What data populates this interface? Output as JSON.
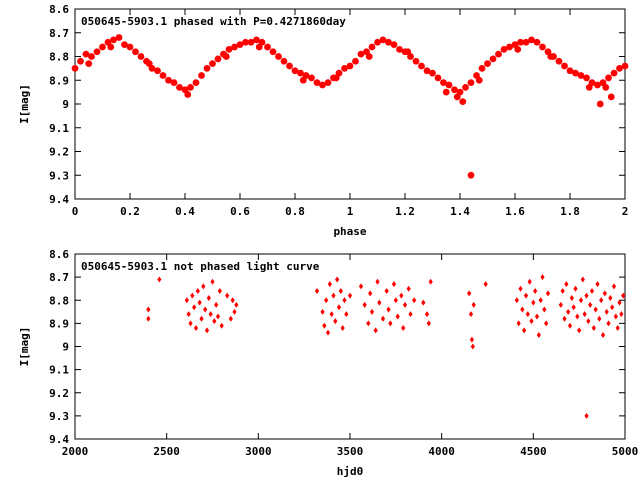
{
  "chart_data": [
    {
      "type": "scatter",
      "title": "050645-5903.1 phased with P=0.4271860day",
      "xlabel": "phase",
      "ylabel": "I[mag]",
      "xlim": [
        0,
        2
      ],
      "ylim": [
        9.4,
        8.6
      ],
      "y_inverted": true,
      "xticks": [
        "0",
        "0.2",
        "0.4",
        "0.6",
        "0.8",
        "1",
        "1.2",
        "1.4",
        "1.6",
        "1.8",
        "2"
      ],
      "yticks": [
        "8.6",
        "8.7",
        "8.8",
        "8.9",
        "9",
        "9.1",
        "9.2",
        "9.3",
        "9.4"
      ],
      "marker": "filled-circle",
      "grid": false,
      "series": [
        {
          "color": "#ff0000",
          "points": [
            [
              0.0,
              8.85
            ],
            [
              0.02,
              8.82
            ],
            [
              0.04,
              8.79
            ],
            [
              0.06,
              8.8
            ],
            [
              0.08,
              8.78
            ],
            [
              0.1,
              8.76
            ],
            [
              0.12,
              8.74
            ],
            [
              0.14,
              8.73
            ],
            [
              0.16,
              8.72
            ],
            [
              0.18,
              8.75
            ],
            [
              0.2,
              8.76
            ],
            [
              0.22,
              8.78
            ],
            [
              0.24,
              8.8
            ],
            [
              0.26,
              8.82
            ],
            [
              0.28,
              8.85
            ],
            [
              0.3,
              8.86
            ],
            [
              0.32,
              8.88
            ],
            [
              0.34,
              8.9
            ],
            [
              0.36,
              8.91
            ],
            [
              0.38,
              8.93
            ],
            [
              0.4,
              8.94
            ],
            [
              0.42,
              8.93
            ],
            [
              0.44,
              8.91
            ],
            [
              0.46,
              8.88
            ],
            [
              0.48,
              8.85
            ],
            [
              0.5,
              8.83
            ],
            [
              0.52,
              8.81
            ],
            [
              0.54,
              8.79
            ],
            [
              0.56,
              8.77
            ],
            [
              0.58,
              8.76
            ],
            [
              0.6,
              8.75
            ],
            [
              0.62,
              8.74
            ],
            [
              0.64,
              8.74
            ],
            [
              0.66,
              8.73
            ],
            [
              0.68,
              8.74
            ],
            [
              0.7,
              8.76
            ],
            [
              0.72,
              8.78
            ],
            [
              0.74,
              8.8
            ],
            [
              0.76,
              8.82
            ],
            [
              0.78,
              8.84
            ],
            [
              0.8,
              8.86
            ],
            [
              0.82,
              8.87
            ],
            [
              0.84,
              8.88
            ],
            [
              0.86,
              8.89
            ],
            [
              0.88,
              8.91
            ],
            [
              0.9,
              8.92
            ],
            [
              0.92,
              8.91
            ],
            [
              0.94,
              8.89
            ],
            [
              0.96,
              8.87
            ],
            [
              0.98,
              8.85
            ],
            [
              1.0,
              8.84
            ],
            [
              1.02,
              8.82
            ],
            [
              1.04,
              8.79
            ],
            [
              1.06,
              8.78
            ],
            [
              1.08,
              8.76
            ],
            [
              1.1,
              8.74
            ],
            [
              1.12,
              8.73
            ],
            [
              1.14,
              8.74
            ],
            [
              1.16,
              8.75
            ],
            [
              1.18,
              8.77
            ],
            [
              1.2,
              8.78
            ],
            [
              1.22,
              8.8
            ],
            [
              1.24,
              8.82
            ],
            [
              1.26,
              8.84
            ],
            [
              1.28,
              8.86
            ],
            [
              1.3,
              8.87
            ],
            [
              1.32,
              8.89
            ],
            [
              1.34,
              8.91
            ],
            [
              1.36,
              8.92
            ],
            [
              1.38,
              8.94
            ],
            [
              1.4,
              8.95
            ],
            [
              1.42,
              8.93
            ],
            [
              1.44,
              8.91
            ],
            [
              1.46,
              8.88
            ],
            [
              1.48,
              8.85
            ],
            [
              1.5,
              8.83
            ],
            [
              1.52,
              8.81
            ],
            [
              1.54,
              8.79
            ],
            [
              1.56,
              8.77
            ],
            [
              1.58,
              8.76
            ],
            [
              1.6,
              8.75
            ],
            [
              1.62,
              8.74
            ],
            [
              1.64,
              8.74
            ],
            [
              1.66,
              8.73
            ],
            [
              1.68,
              8.74
            ],
            [
              1.7,
              8.76
            ],
            [
              1.72,
              8.78
            ],
            [
              1.74,
              8.8
            ],
            [
              1.76,
              8.82
            ],
            [
              1.78,
              8.84
            ],
            [
              1.8,
              8.86
            ],
            [
              1.82,
              8.87
            ],
            [
              1.84,
              8.88
            ],
            [
              1.86,
              8.89
            ],
            [
              1.88,
              8.91
            ],
            [
              1.9,
              8.92
            ],
            [
              1.92,
              8.91
            ],
            [
              1.94,
              8.89
            ],
            [
              1.96,
              8.87
            ],
            [
              1.98,
              8.85
            ],
            [
              2.0,
              8.84
            ],
            [
              0.05,
              8.83
            ],
            [
              0.13,
              8.76
            ],
            [
              0.27,
              8.83
            ],
            [
              0.41,
              8.96
            ],
            [
              0.55,
              8.8
            ],
            [
              0.67,
              8.76
            ],
            [
              0.83,
              8.9
            ],
            [
              0.95,
              8.89
            ],
            [
              1.07,
              8.8
            ],
            [
              1.21,
              8.78
            ],
            [
              1.35,
              8.95
            ],
            [
              1.39,
              8.97
            ],
            [
              1.41,
              8.99
            ],
            [
              1.47,
              8.9
            ],
            [
              1.61,
              8.77
            ],
            [
              1.73,
              8.8
            ],
            [
              1.87,
              8.93
            ],
            [
              1.93,
              8.93
            ],
            [
              1.95,
              8.97
            ],
            [
              1.91,
              9.0
            ],
            [
              1.44,
              9.3
            ]
          ]
        }
      ]
    },
    {
      "type": "scatter",
      "title": "050645-5903.1 not phased light curve",
      "xlabel": "hjd0",
      "ylabel": "I[mag]",
      "xlim": [
        2000,
        5000
      ],
      "ylim": [
        9.4,
        8.6
      ],
      "y_inverted": true,
      "xticks": [
        "2000",
        "2500",
        "3000",
        "3500",
        "4000",
        "4500",
        "5000"
      ],
      "yticks": [
        "8.6",
        "8.7",
        "8.8",
        "8.9",
        "9",
        "9.1",
        "9.2",
        "9.3",
        "9.4"
      ],
      "marker": "filled-diamond",
      "grid": false,
      "series": [
        {
          "color": "#ff0000",
          "points": [
            [
              2400,
              8.84
            ],
            [
              2400,
              8.88
            ],
            [
              2460,
              8.71
            ],
            [
              2610,
              8.8
            ],
            [
              2620,
              8.86
            ],
            [
              2630,
              8.9
            ],
            [
              2640,
              8.78
            ],
            [
              2650,
              8.83
            ],
            [
              2660,
              8.92
            ],
            [
              2670,
              8.76
            ],
            [
              2680,
              8.81
            ],
            [
              2690,
              8.88
            ],
            [
              2700,
              8.74
            ],
            [
              2710,
              8.84
            ],
            [
              2720,
              8.93
            ],
            [
              2730,
              8.79
            ],
            [
              2740,
              8.86
            ],
            [
              2750,
              8.72
            ],
            [
              2760,
              8.89
            ],
            [
              2770,
              8.82
            ],
            [
              2780,
              8.87
            ],
            [
              2790,
              8.76
            ],
            [
              2800,
              8.91
            ],
            [
              2830,
              8.78
            ],
            [
              2850,
              8.88
            ],
            [
              2860,
              8.8
            ],
            [
              2870,
              8.85
            ],
            [
              2880,
              8.82
            ],
            [
              3320,
              8.76
            ],
            [
              3350,
              8.85
            ],
            [
              3360,
              8.91
            ],
            [
              3370,
              8.8
            ],
            [
              3380,
              8.94
            ],
            [
              3390,
              8.73
            ],
            [
              3400,
              8.86
            ],
            [
              3410,
              8.78
            ],
            [
              3420,
              8.89
            ],
            [
              3430,
              8.71
            ],
            [
              3440,
              8.83
            ],
            [
              3450,
              8.76
            ],
            [
              3460,
              8.92
            ],
            [
              3470,
              8.8
            ],
            [
              3480,
              8.86
            ],
            [
              3500,
              8.78
            ],
            [
              3560,
              8.74
            ],
            [
              3580,
              8.82
            ],
            [
              3600,
              8.9
            ],
            [
              3610,
              8.77
            ],
            [
              3620,
              8.85
            ],
            [
              3640,
              8.93
            ],
            [
              3650,
              8.72
            ],
            [
              3660,
              8.81
            ],
            [
              3680,
              8.88
            ],
            [
              3700,
              8.76
            ],
            [
              3710,
              8.84
            ],
            [
              3720,
              8.9
            ],
            [
              3740,
              8.73
            ],
            [
              3750,
              8.8
            ],
            [
              3760,
              8.87
            ],
            [
              3780,
              8.78
            ],
            [
              3790,
              8.92
            ],
            [
              3800,
              8.82
            ],
            [
              3820,
              8.75
            ],
            [
              3830,
              8.86
            ],
            [
              3850,
              8.8
            ],
            [
              3900,
              8.81
            ],
            [
              3920,
              8.86
            ],
            [
              3930,
              8.9
            ],
            [
              3940,
              8.72
            ],
            [
              4150,
              8.77
            ],
            [
              4160,
              8.86
            ],
            [
              4165,
              8.97
            ],
            [
              4170,
              9.0
            ],
            [
              4175,
              8.82
            ],
            [
              4240,
              8.73
            ],
            [
              4410,
              8.8
            ],
            [
              4420,
              8.9
            ],
            [
              4430,
              8.75
            ],
            [
              4440,
              8.84
            ],
            [
              4450,
              8.93
            ],
            [
              4460,
              8.78
            ],
            [
              4470,
              8.86
            ],
            [
              4480,
              8.72
            ],
            [
              4490,
              8.89
            ],
            [
              4500,
              8.81
            ],
            [
              4510,
              8.76
            ],
            [
              4520,
              8.87
            ],
            [
              4530,
              8.95
            ],
            [
              4540,
              8.8
            ],
            [
              4550,
              8.7
            ],
            [
              4560,
              8.84
            ],
            [
              4570,
              8.9
            ],
            [
              4580,
              8.77
            ],
            [
              4650,
              8.82
            ],
            [
              4660,
              8.76
            ],
            [
              4670,
              8.88
            ],
            [
              4680,
              8.73
            ],
            [
              4690,
              8.85
            ],
            [
              4700,
              8.91
            ],
            [
              4710,
              8.79
            ],
            [
              4720,
              8.83
            ],
            [
              4730,
              8.75
            ],
            [
              4740,
              8.87
            ],
            [
              4750,
              8.93
            ],
            [
              4760,
              8.8
            ],
            [
              4770,
              8.71
            ],
            [
              4780,
              8.86
            ],
            [
              4790,
              8.78
            ],
            [
              4800,
              8.89
            ],
            [
              4810,
              8.82
            ],
            [
              4820,
              8.76
            ],
            [
              4830,
              8.92
            ],
            [
              4840,
              8.84
            ],
            [
              4850,
              8.73
            ],
            [
              4860,
              8.88
            ],
            [
              4870,
              8.8
            ],
            [
              4880,
              8.95
            ],
            [
              4890,
              8.77
            ],
            [
              4900,
              8.85
            ],
            [
              4910,
              8.9
            ],
            [
              4920,
              8.79
            ],
            [
              4930,
              8.83
            ],
            [
              4940,
              8.74
            ],
            [
              4950,
              8.87
            ],
            [
              4960,
              8.92
            ],
            [
              4970,
              8.81
            ],
            [
              4980,
              8.86
            ],
            [
              4990,
              8.78
            ],
            [
              4790,
              9.3
            ]
          ]
        }
      ]
    }
  ]
}
